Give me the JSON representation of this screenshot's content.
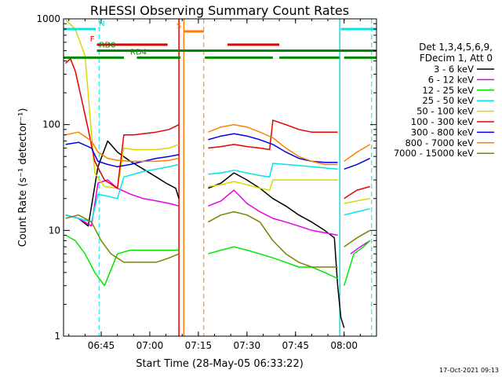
{
  "chart_data": {
    "type": "line",
    "title": "RHESSI Observing Summary Count Rates",
    "xlabel": "Start Time (28-May-05 06:33:22)",
    "ylabel": "Count Rate (s⁻¹ detector⁻¹)",
    "y_scale": "log",
    "ylim": [
      1,
      1000
    ],
    "xlim": [
      "06:33:22",
      "08:10:00"
    ],
    "x_ticks": [
      "06:45",
      "07:00",
      "07:15",
      "07:30",
      "07:45",
      "08:00"
    ],
    "y_ticks": [
      "1",
      "10",
      "100",
      "1000"
    ],
    "legend": {
      "placement": "right",
      "header": [
        "Det 1,3,4,5,6,9,",
        "FDecim 1, Att 0"
      ],
      "entries": [
        {
          "label": "3 - 6 keV",
          "color": "#000000"
        },
        {
          "label": "6 - 12 keV",
          "color": "#e600e6"
        },
        {
          "label": "12 - 25 keV",
          "color": "#00e600"
        },
        {
          "label": "25 - 50 keV",
          "color": "#00e6e6"
        },
        {
          "label": "50 - 100 keV",
          "color": "#d8d800"
        },
        {
          "label": "100 - 300 keV",
          "color": "#e60000"
        },
        {
          "label": "300 - 800 keV",
          "color": "#0000e6"
        },
        {
          "label": "800 - 7000 keV",
          "color": "#ff7f00"
        },
        {
          "label": "7000 - 15000 keV",
          "color": "#808000"
        }
      ]
    },
    "flags": [
      {
        "label": "N",
        "color": "#00e6e6",
        "level": 800,
        "segments": [
          [
            "06:33:22",
            "06:43:20"
          ],
          [
            "07:59:00",
            "08:10:00"
          ]
        ]
      },
      {
        "label": "S",
        "color": "#ff7f00",
        "level": 760,
        "segments": [
          [
            "07:10:30",
            "07:16:40"
          ]
        ]
      },
      {
        "label": "F",
        "color": "#e60000",
        "level": 570,
        "segments": [
          [
            "06:43:40",
            "07:05:30"
          ],
          [
            "07:24:00",
            "07:40:00"
          ]
        ]
      },
      {
        "label": "RD0",
        "color": "#008800",
        "level": 500,
        "segments": [
          [
            "06:43:40",
            "08:10:00"
          ]
        ]
      },
      {
        "label": "RD4",
        "color": "#008800",
        "level": 430,
        "segments": [
          [
            "06:33:22",
            "06:52:00"
          ],
          [
            "06:56:00",
            "07:09:30"
          ],
          [
            "07:17:00",
            "07:38:00"
          ],
          [
            "07:40:00",
            "07:58:30"
          ],
          [
            "08:00:00",
            "08:10:00"
          ]
        ]
      }
    ],
    "vlines": [
      {
        "time": "06:44:20",
        "color": "#00e6e6",
        "style": "dashed"
      },
      {
        "time": "07:16:40",
        "color": "#ff7f00",
        "style": "dashed"
      },
      {
        "time": "08:08:30",
        "color": "#00e6e6",
        "style": "dashed"
      },
      {
        "time": "07:09:00",
        "color": "#e60000",
        "style": "solid"
      },
      {
        "time": "07:10:30",
        "color": "#ff7f00",
        "style": "solid"
      },
      {
        "time": "07:58:40",
        "color": "#00e6e6",
        "style": "solid"
      }
    ],
    "series": [
      {
        "name": "3 - 6 keV",
        "color": "#000000",
        "segments": [
          {
            "x": [
              "06:34:00",
              "06:38:00",
              "06:41:00",
              "06:44:00",
              "06:47:00",
              "06:50:00",
              "06:54:00",
              "06:58:00",
              "07:02:00",
              "07:05:00",
              "07:08:00",
              "07:09:00"
            ],
            "y": [
              14,
              13,
              11,
              40,
              70,
              55,
              45,
              38,
              32,
              28,
              25,
              20
            ]
          },
          {
            "x": [
              "07:18:00",
              "07:22:00",
              "07:26:00",
              "07:30:00",
              "07:34:00",
              "07:38:00",
              "07:42:00",
              "07:46:00",
              "07:50:00",
              "07:54:00",
              "07:57:00",
              "07:58:00",
              "07:59:00",
              "08:00:00"
            ],
            "y": [
              25,
              28,
              35,
              30,
              25,
              20,
              17,
              14,
              12,
              10,
              8.5,
              3,
              1.5,
              1.2
            ]
          }
        ]
      },
      {
        "name": "6 - 12 keV",
        "color": "#e600e6",
        "segments": [
          {
            "x": [
              "06:34:00",
              "06:38:00",
              "06:42:00",
              "06:44:00",
              "06:47:00",
              "06:50:00",
              "06:54:00",
              "06:58:00",
              "07:02:00",
              "07:06:00",
              "07:09:00"
            ],
            "y": [
              14,
              13,
              11,
              28,
              30,
              25,
              22,
              20,
              19,
              18,
              17
            ]
          },
          {
            "x": [
              "07:18:00",
              "07:22:00",
              "07:26:00",
              "07:30:00",
              "07:34:00",
              "07:38:00",
              "07:42:00",
              "07:46:00",
              "07:50:00",
              "07:54:00",
              "07:58:00"
            ],
            "y": [
              17,
              19,
              24,
              18,
              15,
              13,
              12,
              11,
              10,
              9.5,
              9
            ]
          },
          {
            "x": [
              "08:02:00",
              "08:05:00",
              "08:08:00"
            ],
            "y": [
              6,
              7,
              8
            ]
          }
        ]
      },
      {
        "name": "12 - 25 keV",
        "color": "#00e600",
        "segments": [
          {
            "x": [
              "06:34:00",
              "06:37:00",
              "06:40:00",
              "06:43:00",
              "06:46:00",
              "06:50:00",
              "06:54:00",
              "06:58:00",
              "07:02:00",
              "07:06:00",
              "07:09:00"
            ],
            "y": [
              9,
              8,
              6,
              4,
              3,
              6,
              6.5,
              6.5,
              6.5,
              6.5,
              6.5
            ]
          },
          {
            "x": [
              "07:18:00",
              "07:22:00",
              "07:26:00",
              "07:30:00",
              "07:34:00",
              "07:38:00",
              "07:42:00",
              "07:46:00",
              "07:50:00",
              "07:54:00",
              "07:58:00"
            ],
            "y": [
              6,
              6.5,
              7,
              6.5,
              6,
              5.5,
              5,
              4.5,
              4.5,
              4,
              3.5
            ]
          },
          {
            "x": [
              "08:00:00",
              "08:03:00",
              "08:06:00",
              "08:08:00"
            ],
            "y": [
              3,
              6,
              7,
              8
            ]
          }
        ]
      },
      {
        "name": "25 - 50 keV",
        "color": "#00e6e6",
        "segments": [
          {
            "x": [
              "06:34:00",
              "06:38:00",
              "06:42:00",
              "06:44:00",
              "06:47:00",
              "06:50:00",
              "06:52:00",
              "06:55:00",
              "06:58:00",
              "07:02:00",
              "07:06:00",
              "07:09:00"
            ],
            "y": [
              14,
              13,
              12,
              22,
              21,
              20,
              32,
              34,
              36,
              38,
              40,
              42
            ]
          },
          {
            "x": [
              "07:18:00",
              "07:22:00",
              "07:26:00",
              "07:30:00",
              "07:34:00",
              "07:37:00",
              "07:38:00",
              "07:42:00",
              "07:46:00",
              "07:50:00",
              "07:54:00",
              "07:58:00"
            ],
            "y": [
              34,
              35,
              37,
              35,
              33,
              32,
              43,
              42,
              41,
              40,
              39,
              38
            ]
          },
          {
            "x": [
              "08:00:00",
              "08:04:00",
              "08:08:00"
            ],
            "y": [
              14,
              15,
              16
            ]
          }
        ]
      },
      {
        "name": "50 - 100 keV",
        "color": "#d8d800",
        "segments": [
          {
            "x": [
              "06:34:00",
              "06:37:00",
              "06:40:00",
              "06:43:00",
              "06:46:00",
              "06:50:00",
              "06:52:00",
              "06:55:00",
              "06:58:00",
              "07:02:00",
              "07:06:00",
              "07:09:00"
            ],
            "y": [
              980,
              800,
              450,
              35,
              26,
              25,
              60,
              58,
              58,
              58,
              60,
              65
            ]
          },
          {
            "x": [
              "07:18:00",
              "07:22:00",
              "07:26:00",
              "07:30:00",
              "07:34:00",
              "07:37:00",
              "07:38:00",
              "07:42:00",
              "07:46:00",
              "07:50:00",
              "07:54:00",
              "07:58:00"
            ],
            "y": [
              26,
              27,
              29,
              27,
              25,
              24,
              30,
              30,
              30,
              30,
              30,
              30
            ]
          },
          {
            "x": [
              "08:00:00",
              "08:04:00",
              "08:08:00"
            ],
            "y": [
              18,
              19,
              20
            ]
          }
        ]
      },
      {
        "name": "100 - 300 keV",
        "color": "#e60000",
        "segments": [
          {
            "x": [
              "06:34:00",
              "06:35:30",
              "06:37:00",
              "06:39:00",
              "06:41:00",
              "06:43:00",
              "06:46:00",
              "06:50:00",
              "06:52:00",
              "06:55:00",
              "06:58:00",
              "07:02:00",
              "07:06:00",
              "07:09:00"
            ],
            "y": [
              380,
              420,
              320,
              170,
              90,
              45,
              30,
              25,
              80,
              80,
              82,
              85,
              90,
              100
            ]
          },
          {
            "x": [
              "07:18:00",
              "07:22:00",
              "07:26:00",
              "07:30:00",
              "07:34:00",
              "07:37:00",
              "07:38:00",
              "07:42:00",
              "07:46:00",
              "07:50:00",
              "07:54:00",
              "07:58:00"
            ],
            "y": [
              60,
              62,
              65,
              62,
              60,
              58,
              110,
              100,
              90,
              85,
              85,
              85
            ]
          },
          {
            "x": [
              "08:00:00",
              "08:02:00",
              "08:04:00",
              "08:08:00"
            ],
            "y": [
              20,
              22,
              24,
              26
            ]
          }
        ]
      },
      {
        "name": "300 - 800 keV",
        "color": "#0000e6",
        "segments": [
          {
            "x": [
              "06:34:00",
              "06:38:00",
              "06:42:00",
              "06:44:00",
              "06:47:00",
              "06:50:00",
              "06:54:00",
              "06:58:00",
              "07:02:00",
              "07:06:00",
              "07:09:00"
            ],
            "y": [
              65,
              68,
              60,
              45,
              42,
              40,
              42,
              45,
              48,
              50,
              52
            ]
          },
          {
            "x": [
              "07:18:00",
              "07:22:00",
              "07:26:00",
              "07:30:00",
              "07:34:00",
              "07:38:00",
              "07:42:00",
              "07:46:00",
              "07:50:00",
              "07:54:00",
              "07:58:00"
            ],
            "y": [
              72,
              78,
              82,
              78,
              72,
              65,
              55,
              48,
              45,
              44,
              44
            ]
          },
          {
            "x": [
              "08:00:00",
              "08:04:00",
              "08:08:00"
            ],
            "y": [
              38,
              42,
              48
            ]
          }
        ]
      },
      {
        "name": "800 - 7000 keV",
        "color": "#ff7f00",
        "segments": [
          {
            "x": [
              "06:34:00",
              "06:38:00",
              "06:42:00",
              "06:44:00",
              "06:47:00",
              "06:50:00",
              "06:54:00",
              "06:58:00",
              "07:02:00",
              "07:06:00",
              "07:09:00"
            ],
            "y": [
              80,
              85,
              70,
              55,
              48,
              46,
              45,
              45,
              45,
              46,
              48
            ]
          },
          {
            "x": [
              "07:18:00",
              "07:22:00",
              "07:26:00",
              "07:30:00",
              "07:34:00",
              "07:38:00",
              "07:42:00",
              "07:46:00",
              "07:50:00",
              "07:54:00",
              "07:58:00"
            ],
            "y": [
              85,
              95,
              100,
              95,
              85,
              75,
              60,
              50,
              45,
              42,
              42
            ]
          },
          {
            "x": [
              "08:00:00",
              "08:04:00",
              "08:08:00"
            ],
            "y": [
              45,
              55,
              65
            ]
          }
        ]
      },
      {
        "name": "7000 - 15000 keV",
        "color": "#808000",
        "segments": [
          {
            "x": [
              "06:34:00",
              "06:38:00",
              "06:42:00",
              "06:45:00",
              "06:48:00",
              "06:52:00",
              "06:55:00",
              "06:58:00",
              "07:02:00",
              "07:06:00",
              "07:09:00"
            ],
            "y": [
              13,
              14,
              12,
              8,
              6,
              5,
              5,
              5,
              5,
              5.5,
              6
            ]
          },
          {
            "x": [
              "07:18:00",
              "07:22:00",
              "07:26:00",
              "07:30:00",
              "07:34:00",
              "07:38:00",
              "07:42:00",
              "07:46:00",
              "07:50:00",
              "07:54:00",
              "07:58:00"
            ],
            "y": [
              12,
              14,
              15,
              14,
              12,
              8,
              6,
              5,
              4.5,
              4.5,
              4.5
            ]
          },
          {
            "x": [
              "08:00:00",
              "08:04:00",
              "08:08:00"
            ],
            "y": [
              7,
              8.5,
              10
            ]
          }
        ]
      }
    ]
  },
  "footer": {
    "timestamp": "17-Oct-2021 09:13"
  },
  "flag_labels": {
    "N": "N",
    "S": "S",
    "F": "F",
    "RD0": "RD0",
    "RD4": "RD4"
  }
}
